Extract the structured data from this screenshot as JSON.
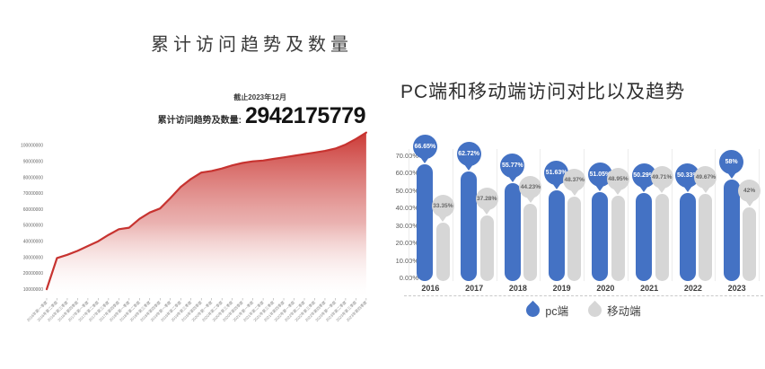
{
  "chart_data": [
    {
      "type": "area",
      "title": "累计访问趋势及数量",
      "annotation": {
        "date_note": "截止2023年12月",
        "label": "累计访问趋势及数量:",
        "value": "2942175779"
      },
      "line_color": "#c73330",
      "fill_gradient_top": "#ca3430",
      "fill_gradient_bottom": "#ffffff",
      "grid": false,
      "yticks": [
        "10000000",
        "20000000",
        "30000000",
        "40000000",
        "50000000",
        "60000000",
        "70000000",
        "80000000",
        "90000000",
        "100000000"
      ],
      "ylim": [
        5000000,
        110000000
      ],
      "x": [
        "2016年第一季度",
        "2016年第二季度",
        "2016年第三季度",
        "2016年第四季度",
        "2017年第一季度",
        "2017年第二季度",
        "2017年第三季度",
        "2017年第四季度",
        "2018年第一季度",
        "2018年第二季度",
        "2018年第三季度",
        "2018年第四季度",
        "2019年第一季度",
        "2019年第二季度",
        "2019年第三季度",
        "2019年第四季度",
        "2020年第一季度",
        "2020年第二季度",
        "2020年第三季度",
        "2020年第四季度",
        "2021年第一季度",
        "2021年第二季度",
        "2021年第三季度",
        "2021年第四季度",
        "2022年第一季度",
        "2022年第二季度",
        "2022年第三季度",
        "2022年第四季度",
        "2023年第一季度",
        "2023年第二季度",
        "2023年第三季度",
        "2023年第四季度"
      ],
      "values": [
        10000000,
        29500000,
        31500000,
        34000000,
        37000000,
        40000000,
        44000000,
        47500000,
        48500000,
        54000000,
        58000000,
        60500000,
        67000000,
        74000000,
        79000000,
        83000000,
        84000000,
        85500000,
        87500000,
        89000000,
        90000000,
        90500000,
        91500000,
        92500000,
        93500000,
        94500000,
        95500000,
        96500000,
        98000000,
        100500000,
        104000000,
        108000000
      ]
    },
    {
      "type": "bar",
      "subtype": "lollipop-capsule",
      "title": "PC端和移动端访问对比以及趋势",
      "categories": [
        "2016",
        "2017",
        "2018",
        "2019",
        "2020",
        "2021",
        "2022",
        "2023"
      ],
      "series": [
        {
          "name": "pc端",
          "color": "#4472c4",
          "label_text_color": "#ffffff",
          "values": [
            66.65,
            62.72,
            55.77,
            51.63,
            51.05,
            50.29,
            50.33,
            58
          ],
          "labels": [
            "66.65%",
            "62.72%",
            "55.77%",
            "51.63%",
            "51.05%",
            "50.29%",
            "50.33%",
            "58%"
          ]
        },
        {
          "name": "移动端",
          "color": "#d6d6d6",
          "label_text_color": "#666666",
          "values": [
            33.35,
            37.28,
            44.23,
            48.37,
            48.95,
            49.71,
            49.67,
            42
          ],
          "labels": [
            "33.35%",
            "37.28%",
            "44.23%",
            "48.37%",
            "48.95%",
            "49.71%",
            "49.67%",
            "42%"
          ]
        }
      ],
      "yticks": [
        "70.00%",
        "60.00%",
        "50.00%",
        "40.00%",
        "30.00%",
        "20.00%",
        "10.00%",
        "0.00%"
      ],
      "ylim": [
        0,
        70
      ],
      "grid": false,
      "legend_position": "bottom"
    }
  ]
}
